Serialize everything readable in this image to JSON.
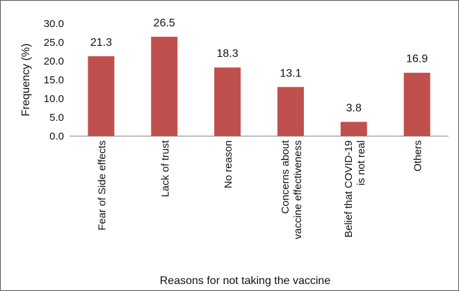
{
  "chart_data": {
    "type": "bar",
    "title": "",
    "xlabel": "Reasons for not taking the vaccine",
    "ylabel": "Frequency (%)",
    "ylim": [
      0,
      30
    ],
    "yticks": [
      "0.0",
      "5.0",
      "10.0",
      "15.0",
      "20.0",
      "25.0",
      "30.0"
    ],
    "categories": [
      [
        "Fear of Side effects"
      ],
      [
        "Lack of trust"
      ],
      [
        "No reason"
      ],
      [
        "Concerns about",
        "vaccine effectiveness"
      ],
      [
        "Belief that COVID-19",
        "is not real"
      ],
      [
        "Others"
      ]
    ],
    "values": [
      21.3,
      26.5,
      18.3,
      13.1,
      3.8,
      16.9
    ],
    "data_labels": [
      "21.3",
      "26.5",
      "18.3",
      "13.1",
      "3.8",
      "16.9"
    ],
    "bar_color": "#c0504d",
    "grid": false,
    "legend": "none"
  }
}
